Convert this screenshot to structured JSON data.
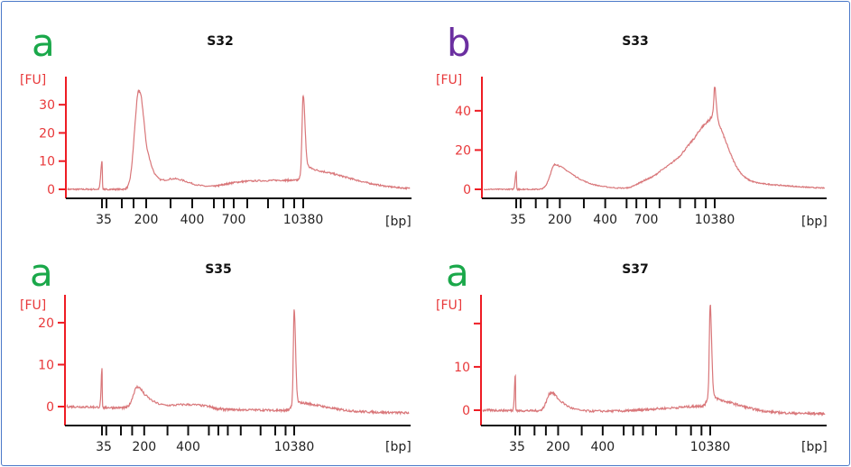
{
  "chart_data": [
    {
      "type": "line",
      "title": "S32",
      "panel_label": "a",
      "panel_label_color": "#1aa84a",
      "ylabel": "[FU]",
      "xlabel": "[bp]",
      "ladder_bp": [
        35,
        50,
        100,
        150,
        200,
        300,
        400,
        500,
        600,
        700,
        1000,
        2000,
        3000,
        7000,
        10380
      ],
      "xtick_labels": [
        "35",
        "200",
        "400",
        "700",
        "10380"
      ],
      "yticks": [
        0,
        10,
        20,
        30
      ],
      "ytick_labels": [
        "0",
        "10",
        "20",
        "30"
      ],
      "ylim": [
        -2,
        39
      ],
      "baseline_start": 0,
      "baseline_end": 0,
      "peaks": [
        {
          "bp": 35,
          "height": 10,
          "w_left": 0.08,
          "w_right": 0.08
        },
        {
          "bp": 170,
          "height": 35,
          "w_left": 0.35,
          "w_right": 0.45
        },
        {
          "bp": 310,
          "height": 3.5,
          "w_left": 0.5,
          "w_right": 0.7
        },
        {
          "bp": 800,
          "height": 1.5,
          "w_left": 2.0,
          "w_right": 2.0
        },
        {
          "bp": 9000,
          "height": 3,
          "w_left": 3,
          "w_right": 0.5
        },
        {
          "bp": 10380,
          "height": 24,
          "w_left": 0.12,
          "w_right": 0.12
        },
        {
          "bp": 10380,
          "height": 7,
          "w_left": 0.2,
          "w_right": 3.0
        }
      ],
      "line_color": "#d9777a",
      "axis_color": "#ee1c24"
    },
    {
      "type": "line",
      "title": "S33",
      "panel_label": "b",
      "panel_label_color": "#6b2fa0",
      "ylabel": "[FU]",
      "xlabel": "[bp]",
      "ladder_bp": [
        35,
        50,
        100,
        150,
        200,
        300,
        400,
        500,
        600,
        700,
        1000,
        2000,
        3000,
        7000,
        10380
      ],
      "xtick_labels": [
        "35",
        "200",
        "400",
        "700",
        "10380"
      ],
      "yticks": [
        0,
        20,
        40
      ],
      "ytick_labels": [
        "0",
        "20",
        "40"
      ],
      "ylim": [
        -2,
        56
      ],
      "baseline_start": 0,
      "baseline_end": 0,
      "peaks": [
        {
          "bp": 35,
          "height": 9,
          "w_left": 0.07,
          "w_right": 0.07
        },
        {
          "bp": 180,
          "height": 12.5,
          "w_left": 0.4,
          "w_right": 0.8
        },
        {
          "bp": 330,
          "height": 1.5,
          "w_left": 0.8,
          "w_right": 0.8
        },
        {
          "bp": 650,
          "height": 1.5,
          "w_left": 0.7,
          "w_right": 0.7
        },
        {
          "bp": 9000,
          "height": 35,
          "w_left": 2.2,
          "w_right": 1.1
        },
        {
          "bp": 10380,
          "height": 15,
          "w_left": 0.1,
          "w_right": 0.1
        },
        {
          "bp": 10380,
          "height": 4,
          "w_left": 0.3,
          "w_right": 4.0
        }
      ],
      "line_color": "#d9777a",
      "axis_color": "#ee1c24"
    },
    {
      "type": "line",
      "title": "S35",
      "panel_label": "a",
      "panel_label_color": "#1aa84a",
      "ylabel": "[FU]",
      "xlabel": "[bp]",
      "ladder_bp": [
        35,
        50,
        100,
        150,
        200,
        300,
        400,
        500,
        600,
        700,
        1000,
        2000,
        3000,
        7000,
        10380
      ],
      "xtick_labels": [
        "35",
        "200",
        "400",
        "10380"
      ],
      "yticks": [
        0,
        10,
        20
      ],
      "ytick_labels": [
        "0",
        "10",
        "20"
      ],
      "ylim": [
        -4.5,
        26
      ],
      "baseline_start": 0,
      "baseline_end": -1.5,
      "peaks": [
        {
          "bp": 35,
          "height": 9,
          "w_left": 0.06,
          "w_right": 0.06
        },
        {
          "bp": 170,
          "height": 5,
          "w_left": 0.35,
          "w_right": 0.6
        },
        {
          "bp": 400,
          "height": 1,
          "w_left": 1,
          "w_right": 1
        },
        {
          "bp": 10380,
          "height": 22,
          "w_left": 0.1,
          "w_right": 0.1
        },
        {
          "bp": 10380,
          "height": 2,
          "w_left": 0.3,
          "w_right": 2
        }
      ],
      "line_color": "#d9777a",
      "axis_color": "#ee1c24"
    },
    {
      "type": "line",
      "title": "S37",
      "panel_label": "a",
      "panel_label_color": "#1aa84a",
      "ylabel": "[FU]",
      "xlabel": "[bp]",
      "ladder_bp": [
        35,
        50,
        100,
        150,
        200,
        300,
        400,
        500,
        600,
        700,
        1000,
        2000,
        3000,
        7000,
        10380
      ],
      "xtick_labels": [
        "35",
        "200",
        "400",
        "10380"
      ],
      "yticks": [
        0,
        10,
        20
      ],
      "ytick_labels": [
        "0",
        "10",
        ""
      ],
      "ylim": [
        -3.5,
        26
      ],
      "baseline_start": 0,
      "baseline_end": -0.8,
      "peaks": [
        {
          "bp": 35,
          "height": 8.5,
          "w_left": 0.06,
          "w_right": 0.06
        },
        {
          "bp": 170,
          "height": 4.3,
          "w_left": 0.35,
          "w_right": 0.6
        },
        {
          "bp": 9000,
          "height": 1.5,
          "w_left": 3,
          "w_right": 0.5
        },
        {
          "bp": 10380,
          "height": 21,
          "w_left": 0.1,
          "w_right": 0.1
        },
        {
          "bp": 10380,
          "height": 3,
          "w_left": 0.3,
          "w_right": 2
        }
      ],
      "line_color": "#d9777a",
      "axis_color": "#ee1c24"
    }
  ]
}
